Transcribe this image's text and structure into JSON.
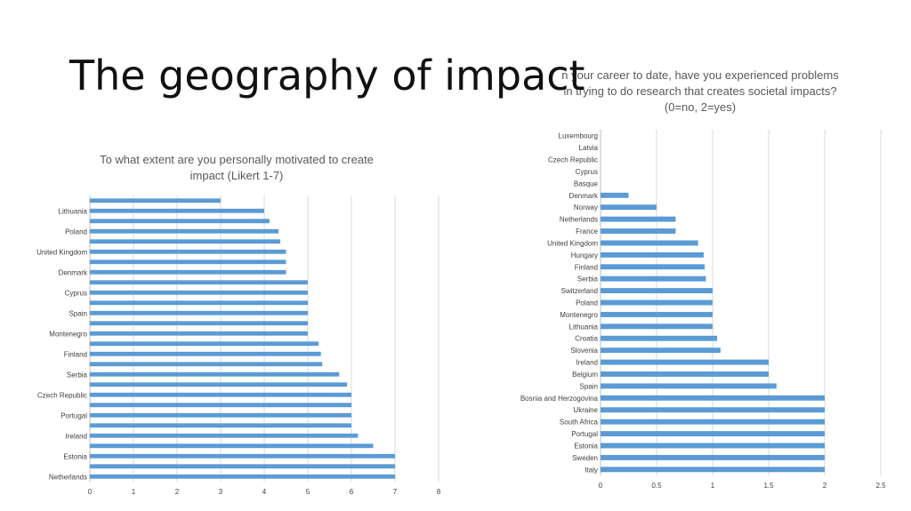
{
  "slide": {
    "title": "The geography of impact"
  },
  "chart_data": [
    {
      "type": "bar",
      "orientation": "horizontal",
      "title_lines": [
        "To what extent are you personally motivated to create",
        "impact (Likert 1-7)"
      ],
      "categories": [
        "Netherlands",
        "",
        "Estonia",
        "",
        "Ireland",
        "",
        "Portugal",
        "",
        "Czech Republic",
        "",
        "Serbia",
        "",
        "Finland",
        "",
        "Montenegro",
        "",
        "Spain",
        "",
        "Cyprus",
        "",
        "Denmark",
        "",
        "United Kingdom",
        "",
        "Poland",
        "",
        "Lithuania",
        ""
      ],
      "values": [
        7.0,
        7.0,
        7.0,
        6.5,
        6.15,
        6.0,
        6.0,
        6.0,
        6.0,
        5.9,
        5.72,
        5.33,
        5.3,
        5.25,
        5.0,
        5.0,
        5.0,
        5.0,
        5.0,
        5.0,
        4.5,
        4.5,
        4.5,
        4.37,
        4.33,
        4.12,
        4.0,
        3.0
      ],
      "xlim": [
        0,
        8
      ],
      "xticks": [
        "0",
        "1",
        "2",
        "3",
        "4",
        "5",
        "6",
        "7",
        "8"
      ],
      "grid": true,
      "bar_color": "#5B9BD5"
    },
    {
      "type": "bar",
      "orientation": "horizontal",
      "title_lines": [
        "n your career to date, have you experienced problems",
        "in trying to do research that creates societal impacts?",
        "(0=no, 2=yes)"
      ],
      "categories": [
        "Italy",
        "Sweden",
        "Estonia",
        "Portugal",
        "South Africa",
        "Ukraine",
        "Bosnia and Herzogovina",
        "Spain",
        "Belgium",
        "Ireland",
        "Slovenia",
        "Croatia",
        "Lithuania",
        "Montenegro",
        "Poland",
        "Switzerland",
        "Serbia",
        "Finland",
        "Hungary",
        "United Kingdom",
        "France",
        "Netherlands",
        "Norway",
        "Denmark",
        "Basque",
        "Cyprus",
        "Czech Republic",
        "Latvia",
        "Luxembourg"
      ],
      "values": [
        2.0,
        2.0,
        2.0,
        2.0,
        2.0,
        2.0,
        2.0,
        1.57,
        1.5,
        1.5,
        1.07,
        1.04,
        1.0,
        1.0,
        1.0,
        1.0,
        0.94,
        0.93,
        0.92,
        0.87,
        0.67,
        0.67,
        0.5,
        0.25,
        0,
        0,
        0,
        0,
        0
      ],
      "xlim": [
        0,
        2.5
      ],
      "xticks": [
        "0",
        "0.5",
        "1",
        "1.5",
        "2",
        "2.5"
      ],
      "grid": true,
      "bar_color": "#5B9BD5"
    }
  ]
}
